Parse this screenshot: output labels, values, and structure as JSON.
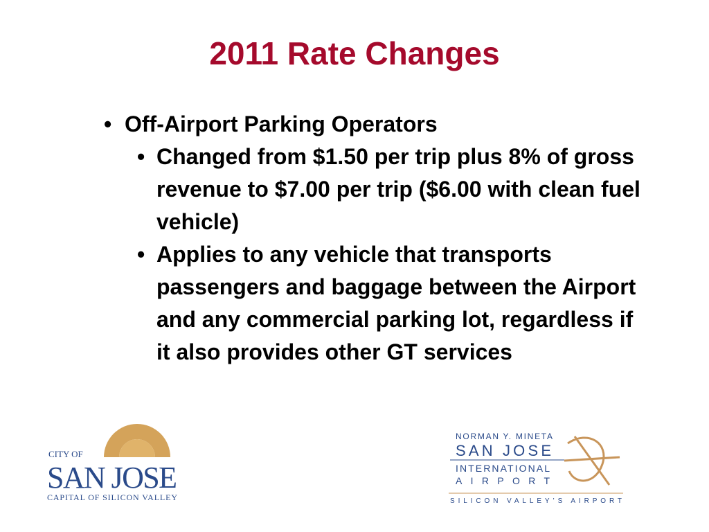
{
  "header": {
    "title": "2011 Rate Changes"
  },
  "bullets": [
    {
      "text": "Off-Airport Parking Operators",
      "children": [
        {
          "text": "Changed from $1.50 per trip plus 8% of gross revenue to $7.00 per trip ($6.00 with clean fuel vehicle)"
        },
        {
          "text": "Applies to any vehicle that transports passengers and baggage between the Airport and any commercial parking lot, regardless if it also provides other GT services"
        }
      ]
    }
  ],
  "logos": {
    "city": {
      "line1": "CITY OF",
      "line2": "SAN JOSE",
      "line3": "CAPITAL OF SILICON VALLEY"
    },
    "airport": {
      "line1": "NORMAN Y. MINETA",
      "line2": "SAN JOSE",
      "line3": "INTERNATIONAL",
      "line4": "AIRPORT",
      "tagline": "SILICON VALLEY’S AIRPORT"
    }
  }
}
